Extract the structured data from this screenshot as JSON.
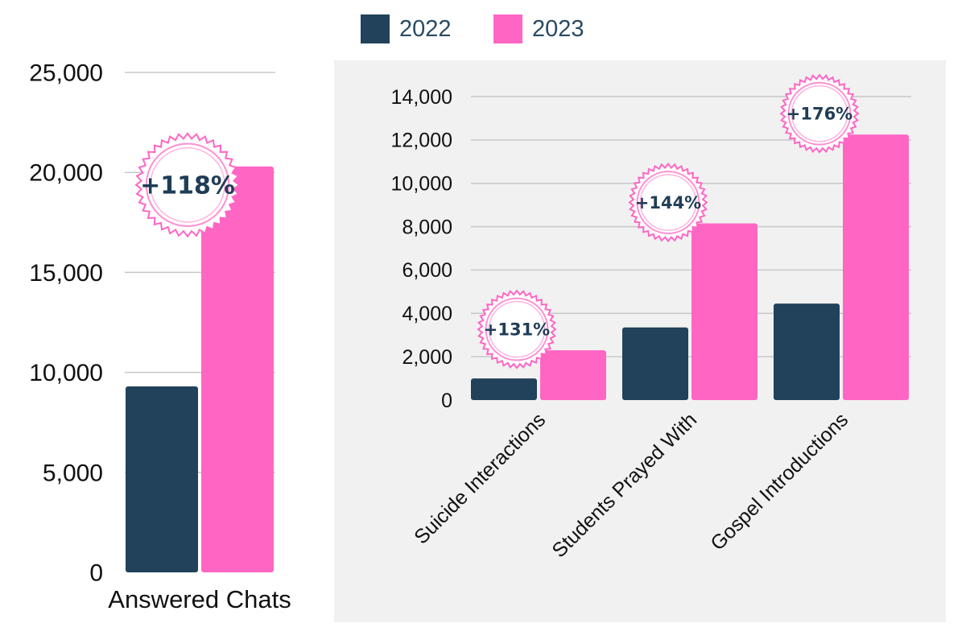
{
  "legend": [
    {
      "label": "2022",
      "color": "#21425a"
    },
    {
      "label": "2023",
      "color": "#ff66c4"
    }
  ],
  "chart_data": [
    {
      "type": "bar",
      "categories": [
        "Answered Chats"
      ],
      "series": [
        {
          "name": "2022",
          "values": [
            9300
          ]
        },
        {
          "name": "2023",
          "values": [
            20300
          ]
        }
      ],
      "ylim": [
        0,
        25000
      ],
      "yticks": [
        "0",
        "5,000",
        "10,000",
        "15,000",
        "20,000",
        "25,000"
      ],
      "annotations": [
        "+118%"
      ],
      "grid": true
    },
    {
      "type": "bar",
      "categories": [
        "Suicide Interactions",
        "Students Prayed With",
        "Gospel Introductions"
      ],
      "series": [
        {
          "name": "2022",
          "values": [
            1000,
            3350,
            4450
          ]
        },
        {
          "name": "2023",
          "values": [
            2300,
            8150,
            12250
          ]
        }
      ],
      "ylim": [
        0,
        14000
      ],
      "yticks": [
        "0",
        "2,000",
        "4,000",
        "6,000",
        "8,000",
        "10,000",
        "12,000",
        "14,000"
      ],
      "annotations": [
        "+131%",
        "+144%",
        "+176%"
      ],
      "grid": true
    }
  ]
}
